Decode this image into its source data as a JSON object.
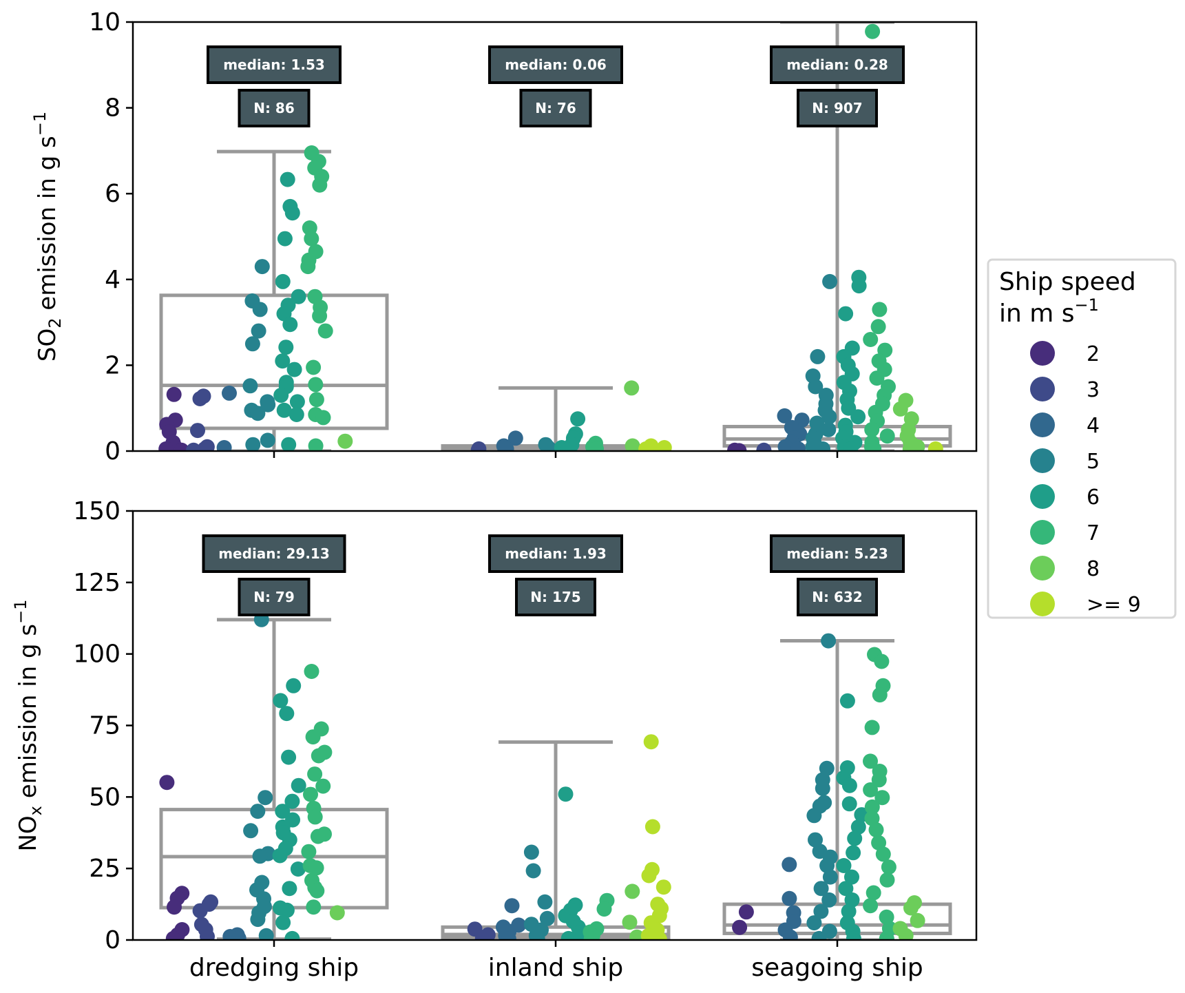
{
  "legend": {
    "title_line1": "Ship speed",
    "title_line2": " in m s",
    "title_sup": "−1",
    "items": [
      {
        "label": "2",
        "color": "#472d7b"
      },
      {
        "label": "3",
        "color": "#3e4a89"
      },
      {
        "label": "4",
        "color": "#31688e"
      },
      {
        "label": "5",
        "color": "#26828e"
      },
      {
        "label": "6",
        "color": "#1f9e89"
      },
      {
        "label": "7",
        "color": "#35b779"
      },
      {
        "label": "8",
        "color": "#6ccd5a"
      },
      {
        "label": ">= 9",
        "color": "#b5de2b"
      }
    ]
  },
  "chart_data": [
    {
      "type": "scatter",
      "subtype": "box-with-stripplot",
      "title": "",
      "ylabel": "SO2 emission in g s-1",
      "ylabel_main": "SO",
      "ylabel_sub": "2",
      "ylabel_rest": " emission in g s",
      "ylabel_sup": "−1",
      "xlabel": "",
      "ylim": [
        0,
        10
      ],
      "yticks": [
        0,
        2,
        4,
        6,
        8,
        10
      ],
      "categories": [
        "dredging ship",
        "inland ship",
        "seagoing ship"
      ],
      "show_xticklabels": false,
      "boxes": [
        {
          "category": "dredging ship",
          "q1": 0.53,
          "median": 1.53,
          "q3": 3.63,
          "whisker_low": 0.0,
          "whisker_high": 6.98,
          "median_label": "median: 1.53",
          "n_label": "N: 86"
        },
        {
          "category": "inland ship",
          "q1": 0.02,
          "median": 0.06,
          "q3": 0.12,
          "whisker_low": 0.0,
          "whisker_high": 1.47,
          "median_label": "median: 0.06",
          "n_label": "N: 76"
        },
        {
          "category": "seagoing ship",
          "q1": 0.12,
          "median": 0.28,
          "q3": 0.57,
          "whisker_low": 0.0,
          "whisker_high": 10.0,
          "median_label": "median: 0.28",
          "n_label": "N: 907"
        }
      ],
      "points": [
        {
          "category": "dredging ship",
          "speed": "2",
          "values": [
            1.32,
            0.72,
            0.62,
            0.45,
            0.2,
            0.12,
            0.05,
            0.02
          ]
        },
        {
          "category": "dredging ship",
          "speed": "3",
          "values": [
            1.28,
            1.22,
            0.48,
            0.1,
            0.05,
            0.02
          ]
        },
        {
          "category": "dredging ship",
          "speed": "4",
          "values": [
            1.35,
            0.08
          ]
        },
        {
          "category": "dredging ship",
          "speed": "5",
          "values": [
            4.3,
            3.5,
            3.3,
            2.8,
            2.5,
            1.52,
            1.15,
            1.08,
            0.95,
            0.88,
            0.25,
            0.15
          ]
        },
        {
          "category": "dredging ship",
          "speed": "6",
          "values": [
            6.33,
            5.7,
            5.55,
            4.95,
            3.95,
            3.6,
            3.4,
            3.2,
            2.95,
            2.42,
            2.1,
            1.9,
            1.6,
            1.5,
            1.3,
            1.15,
            0.95,
            0.85,
            0.15
          ]
        },
        {
          "category": "dredging ship",
          "speed": "7",
          "values": [
            6.95,
            6.75,
            6.6,
            6.4,
            6.2,
            5.2,
            4.95,
            4.65,
            4.45,
            4.3,
            3.6,
            3.35,
            3.15,
            2.8,
            1.95,
            1.55,
            1.2,
            0.85,
            0.78,
            0.12
          ]
        },
        {
          "category": "dredging ship",
          "speed": "8",
          "values": [
            0.23
          ]
        },
        {
          "category": "inland ship",
          "speed": "3",
          "values": [
            0.05,
            0.02
          ]
        },
        {
          "category": "inland ship",
          "speed": "4",
          "values": [
            0.3,
            0.12,
            0.05
          ]
        },
        {
          "category": "inland ship",
          "speed": "5",
          "values": [
            0.15,
            0.1,
            0.05,
            0.02
          ]
        },
        {
          "category": "inland ship",
          "speed": "6",
          "values": [
            0.75,
            0.4,
            0.3,
            0.15,
            0.08,
            0.03
          ]
        },
        {
          "category": "inland ship",
          "speed": "7",
          "values": [
            0.18,
            0.1,
            0.05
          ]
        },
        {
          "category": "inland ship",
          "speed": "8",
          "values": [
            1.47,
            0.12
          ]
        },
        {
          "category": "inland ship",
          "speed": ">= 9",
          "values": [
            0.12,
            0.08,
            0.05
          ]
        },
        {
          "category": "seagoing ship",
          "speed": "2",
          "values": [
            0.02,
            0.01
          ]
        },
        {
          "category": "seagoing ship",
          "speed": "3",
          "values": [
            0.02
          ]
        },
        {
          "category": "seagoing ship",
          "speed": "4",
          "values": [
            0.82,
            0.72,
            0.55,
            0.4,
            0.3,
            0.2,
            0.1,
            0.05
          ]
        },
        {
          "category": "seagoing ship",
          "speed": "5",
          "values": [
            3.95,
            2.2,
            1.75,
            1.5,
            1.3,
            1.1,
            0.95,
            0.8,
            0.65,
            0.5,
            0.4,
            0.3,
            0.2,
            0.1,
            0.05
          ]
        },
        {
          "category": "seagoing ship",
          "speed": "6",
          "values": [
            4.05,
            3.85,
            3.2,
            2.4,
            2.2,
            2.0,
            1.8,
            1.6,
            1.4,
            1.2,
            1.0,
            0.8,
            0.6,
            0.45,
            0.3,
            0.2,
            0.1,
            0.05
          ]
        },
        {
          "category": "seagoing ship",
          "speed": "7",
          "values": [
            9.78,
            3.3,
            2.9,
            2.6,
            2.35,
            2.1,
            1.9,
            1.7,
            1.5,
            1.3,
            1.1,
            0.9,
            0.7,
            0.5,
            0.35,
            0.2,
            0.1,
            0.05
          ]
        },
        {
          "category": "seagoing ship",
          "speed": "8",
          "values": [
            1.18,
            0.98,
            0.75,
            0.5,
            0.35,
            0.2,
            0.1,
            0.05
          ]
        },
        {
          "category": "seagoing ship",
          "speed": ">= 9",
          "values": [
            0.05
          ]
        }
      ]
    },
    {
      "type": "scatter",
      "subtype": "box-with-stripplot",
      "title": "",
      "ylabel": "NOx emission in g s-1",
      "ylabel_main": "NO",
      "ylabel_sub": "x",
      "ylabel_rest": " emission in g s",
      "ylabel_sup": "−1",
      "xlabel": "",
      "ylim": [
        0,
        150
      ],
      "yticks": [
        0,
        25,
        50,
        75,
        100,
        125,
        150
      ],
      "categories": [
        "dredging ship",
        "inland ship",
        "seagoing ship"
      ],
      "show_xticklabels": true,
      "boxes": [
        {
          "category": "dredging ship",
          "q1": 11.3,
          "median": 29.13,
          "q3": 45.6,
          "whisker_low": 0.3,
          "whisker_high": 112.0,
          "median_label": "median: 29.13",
          "n_label": "N: 79"
        },
        {
          "category": "inland ship",
          "q1": 0.8,
          "median": 1.93,
          "q3": 4.5,
          "whisker_low": 0.0,
          "whisker_high": 69.2,
          "median_label": "median: 1.93",
          "n_label": "N: 175"
        },
        {
          "category": "seagoing ship",
          "q1": 2.3,
          "median": 5.23,
          "q3": 12.5,
          "whisker_low": 0.0,
          "whisker_high": 104.6,
          "median_label": "median: 5.23",
          "n_label": "N: 632"
        }
      ],
      "points": [
        {
          "category": "dredging ship",
          "speed": "2",
          "values": [
            55.1,
            16.3,
            14.6,
            11.5,
            3.6,
            1.8,
            0.5
          ]
        },
        {
          "category": "dredging ship",
          "speed": "3",
          "values": [
            13.3,
            12.5,
            10.2,
            5.4,
            3.6,
            1.2
          ]
        },
        {
          "category": "dredging ship",
          "speed": "4",
          "values": [
            1.8,
            1.2,
            0.6
          ]
        },
        {
          "category": "dredging ship",
          "speed": "5",
          "values": [
            112.0,
            49.8,
            45.0,
            38.2,
            30.2,
            29.3,
            20.1,
            17.5,
            14.4,
            11.7,
            9.5,
            7.2,
            1.5
          ]
        },
        {
          "category": "dredging ship",
          "speed": "6",
          "values": [
            88.9,
            83.7,
            79.2,
            63.9,
            54.0,
            48.5,
            45.0,
            42.0,
            39.5,
            37.5,
            35.0,
            32.0,
            29.5,
            24.8,
            18.0,
            11.2,
            10.4,
            6.1,
            0.5
          ]
        },
        {
          "category": "dredging ship",
          "speed": "7",
          "values": [
            93.9,
            73.8,
            71.0,
            65.6,
            64.4,
            58.0,
            53.8,
            50.9,
            46.0,
            43.0,
            37.0,
            36.2,
            30.9,
            26.0,
            25.2,
            20.8,
            18.3,
            17.2,
            11.5
          ]
        },
        {
          "category": "dredging ship",
          "speed": "8",
          "values": [
            9.5
          ]
        },
        {
          "category": "inland ship",
          "speed": "3",
          "values": [
            3.8,
            1.8,
            0.5
          ]
        },
        {
          "category": "inland ship",
          "speed": "4",
          "values": [
            12.0,
            5.2,
            4.5,
            3.0,
            1.5,
            0.4
          ]
        },
        {
          "category": "inland ship",
          "speed": "5",
          "values": [
            30.7,
            24.2,
            13.3,
            7.5,
            5.5,
            3.5,
            1.5,
            0.4
          ]
        },
        {
          "category": "inland ship",
          "speed": "6",
          "values": [
            51.0,
            12.2,
            10.4,
            8.5,
            6.5,
            4.5,
            2.5,
            0.5
          ]
        },
        {
          "category": "inland ship",
          "speed": "7",
          "values": [
            13.8,
            10.8,
            3.9,
            2.8,
            1.5,
            0.5
          ]
        },
        {
          "category": "inland ship",
          "speed": "8",
          "values": [
            17.0,
            6.2,
            1.0
          ]
        },
        {
          "category": "inland ship",
          "speed": ">= 9",
          "values": [
            69.3,
            39.6,
            24.6,
            22.5,
            18.5,
            12.5,
            11.0,
            8.5,
            6.0,
            3.5,
            1.5,
            0.3
          ]
        },
        {
          "category": "seagoing ship",
          "speed": "2",
          "values": [
            9.8,
            4.4
          ]
        },
        {
          "category": "seagoing ship",
          "speed": "4",
          "values": [
            26.4,
            14.5,
            9.5,
            6.5,
            3.5,
            1.0
          ]
        },
        {
          "category": "seagoing ship",
          "speed": "5",
          "values": [
            104.6,
            60.0,
            56.0,
            53.0,
            48.0,
            46.8,
            43.5,
            35.0,
            31.0,
            29.0,
            26.0,
            22.0,
            18.0,
            14.0,
            10.0,
            6.0,
            3.0,
            0.5
          ]
        },
        {
          "category": "seagoing ship",
          "speed": "6",
          "values": [
            83.6,
            60.2,
            56.7,
            54.0,
            47.6,
            43.8,
            39.5,
            35.5,
            30.5,
            26.0,
            22.0,
            18.0,
            14.0,
            10.0,
            6.0,
            3.0,
            0.5
          ]
        },
        {
          "category": "seagoing ship",
          "speed": "7",
          "values": [
            99.8,
            97.4,
            88.9,
            85.7,
            74.3,
            62.5,
            59.0,
            56.0,
            52.5,
            49.8,
            46.5,
            42.5,
            38.5,
            34.0,
            30.0,
            25.5,
            21.0,
            16.5,
            12.0,
            8.0,
            4.0,
            0.5
          ]
        },
        {
          "category": "seagoing ship",
          "speed": "8",
          "values": [
            13.0,
            11.2,
            6.8,
            4.0,
            1.5
          ]
        }
      ]
    }
  ]
}
